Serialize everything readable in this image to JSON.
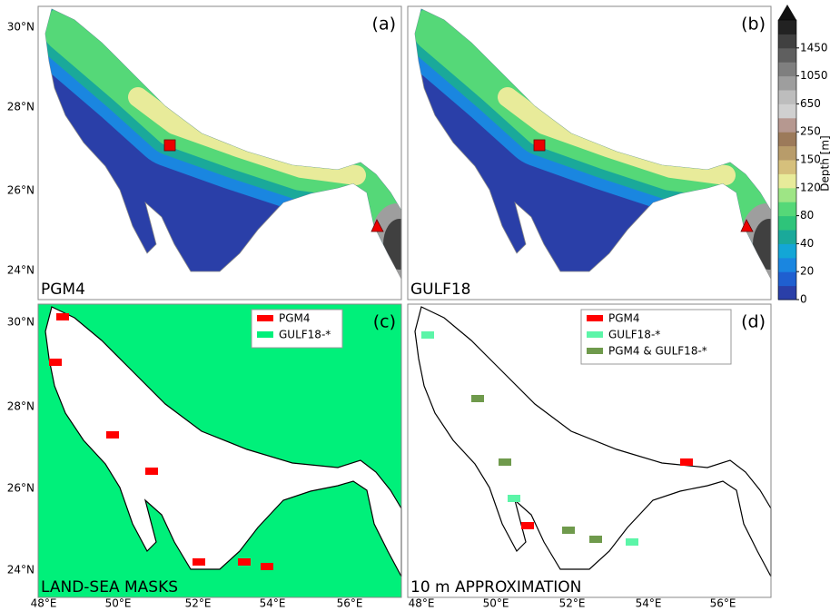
{
  "panels": [
    {
      "letter": "(a)",
      "label": "PGM4"
    },
    {
      "letter": "(b)",
      "label": "GULF18"
    },
    {
      "letter": "(c)",
      "label": "LAND-SEA MASKS",
      "legend": [
        {
          "name": "PGM4",
          "color": "#ff0000"
        },
        {
          "name": "GULF18-*",
          "color": "#00f07a"
        }
      ]
    },
    {
      "letter": "(d)",
      "label": "10 m APPROXIMATION",
      "legend": [
        {
          "name": "PGM4",
          "color": "#ff0000"
        },
        {
          "name": "GULF18-*",
          "color": "#5cf5a8"
        },
        {
          "name": "PGM4 & GULF18-*",
          "color": "#6f9a4c"
        }
      ]
    }
  ],
  "lat_labels": [
    "30°N",
    "28°N",
    "26°N",
    "24°N"
  ],
  "lon_labels": [
    "48°E",
    "50°E",
    "52°E",
    "54°E",
    "56°E"
  ],
  "colorbar": {
    "label": "Depth [m]",
    "ticks": [
      1450,
      1050,
      650,
      250,
      150,
      120,
      80,
      40,
      20,
      0
    ],
    "colors": [
      "#2a3fa8",
      "#1f5fd0",
      "#1a86e0",
      "#13a6d6",
      "#1aa99a",
      "#2ec47a",
      "#55d878",
      "#9ee585",
      "#e8eb9a",
      "#d6c07c",
      "#b89c6a",
      "#9c7a5a",
      "#b69890",
      "#d0d0d0",
      "#bdbdbd",
      "#9e9e9e",
      "#7f7f7f",
      "#5f5f5f",
      "#404040",
      "#222222"
    ]
  }
}
